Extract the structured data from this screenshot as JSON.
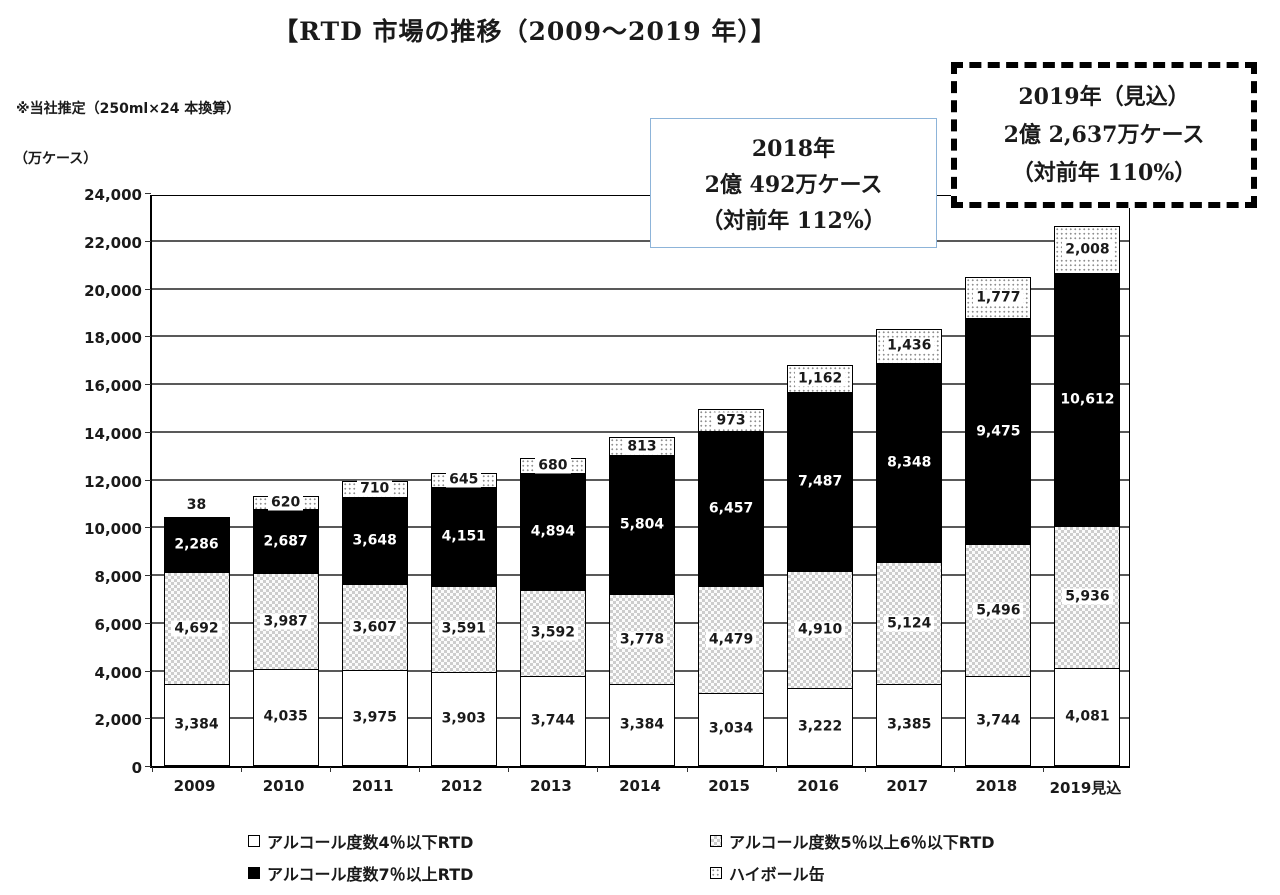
{
  "title": "【RTD 市場の推移（2009～2019 年）】",
  "notes": {
    "estimate": "※当社推定（250ml×24 本換算）",
    "unit": "（万ケース）"
  },
  "callouts": {
    "c2018": {
      "line1": "2018年",
      "line2": "2億 492万ケース",
      "line3": "（対前年 112%）",
      "border_color": "#8db4d9"
    },
    "c2019": {
      "line1": "2019年（見込）",
      "line2": "2億 2,637万ケース",
      "line3": "（対前年 110%）",
      "border_color": "#000000"
    }
  },
  "chart_data": {
    "type": "bar",
    "stacked": true,
    "title": "RTD市場の推移（2009～2019年）",
    "ylabel": "万ケース",
    "ylim": [
      0,
      24000
    ],
    "ytick_step": 2000,
    "yticks": [
      "0",
      "2,000",
      "4,000",
      "6,000",
      "8,000",
      "10,000",
      "12,000",
      "14,000",
      "16,000",
      "18,000",
      "20,000",
      "22,000",
      "24,000"
    ],
    "grid": true,
    "legend_position": "bottom",
    "categories": [
      "2009",
      "2010",
      "2011",
      "2012",
      "2013",
      "2014",
      "2015",
      "2016",
      "2017",
      "2018",
      "2019見込"
    ],
    "series": [
      {
        "name": "アルコール度数4％以下RTD",
        "fill": "white",
        "values": [
          3384,
          4035,
          3975,
          3903,
          3744,
          3384,
          3034,
          3222,
          3385,
          3744,
          4081
        ]
      },
      {
        "name": "アルコール度数5％以上6％以下RTD",
        "fill": "checker",
        "values": [
          4692,
          3987,
          3607,
          3591,
          3592,
          3778,
          4479,
          4910,
          5124,
          5496,
          5936
        ]
      },
      {
        "name": "アルコール度数7％以上RTD",
        "fill": "black",
        "values": [
          2286,
          2687,
          3648,
          4151,
          4894,
          5804,
          6457,
          7487,
          8348,
          9475,
          10612
        ]
      },
      {
        "name": "ハイボール缶",
        "fill": "dots",
        "values": [
          38,
          620,
          710,
          645,
          680,
          813,
          973,
          1162,
          1436,
          1777,
          2008
        ]
      }
    ],
    "totals": [
      10400,
      11329,
      11940,
      12290,
      12910,
      13779,
      14943,
      16781,
      18293,
      20492,
      22637
    ]
  }
}
